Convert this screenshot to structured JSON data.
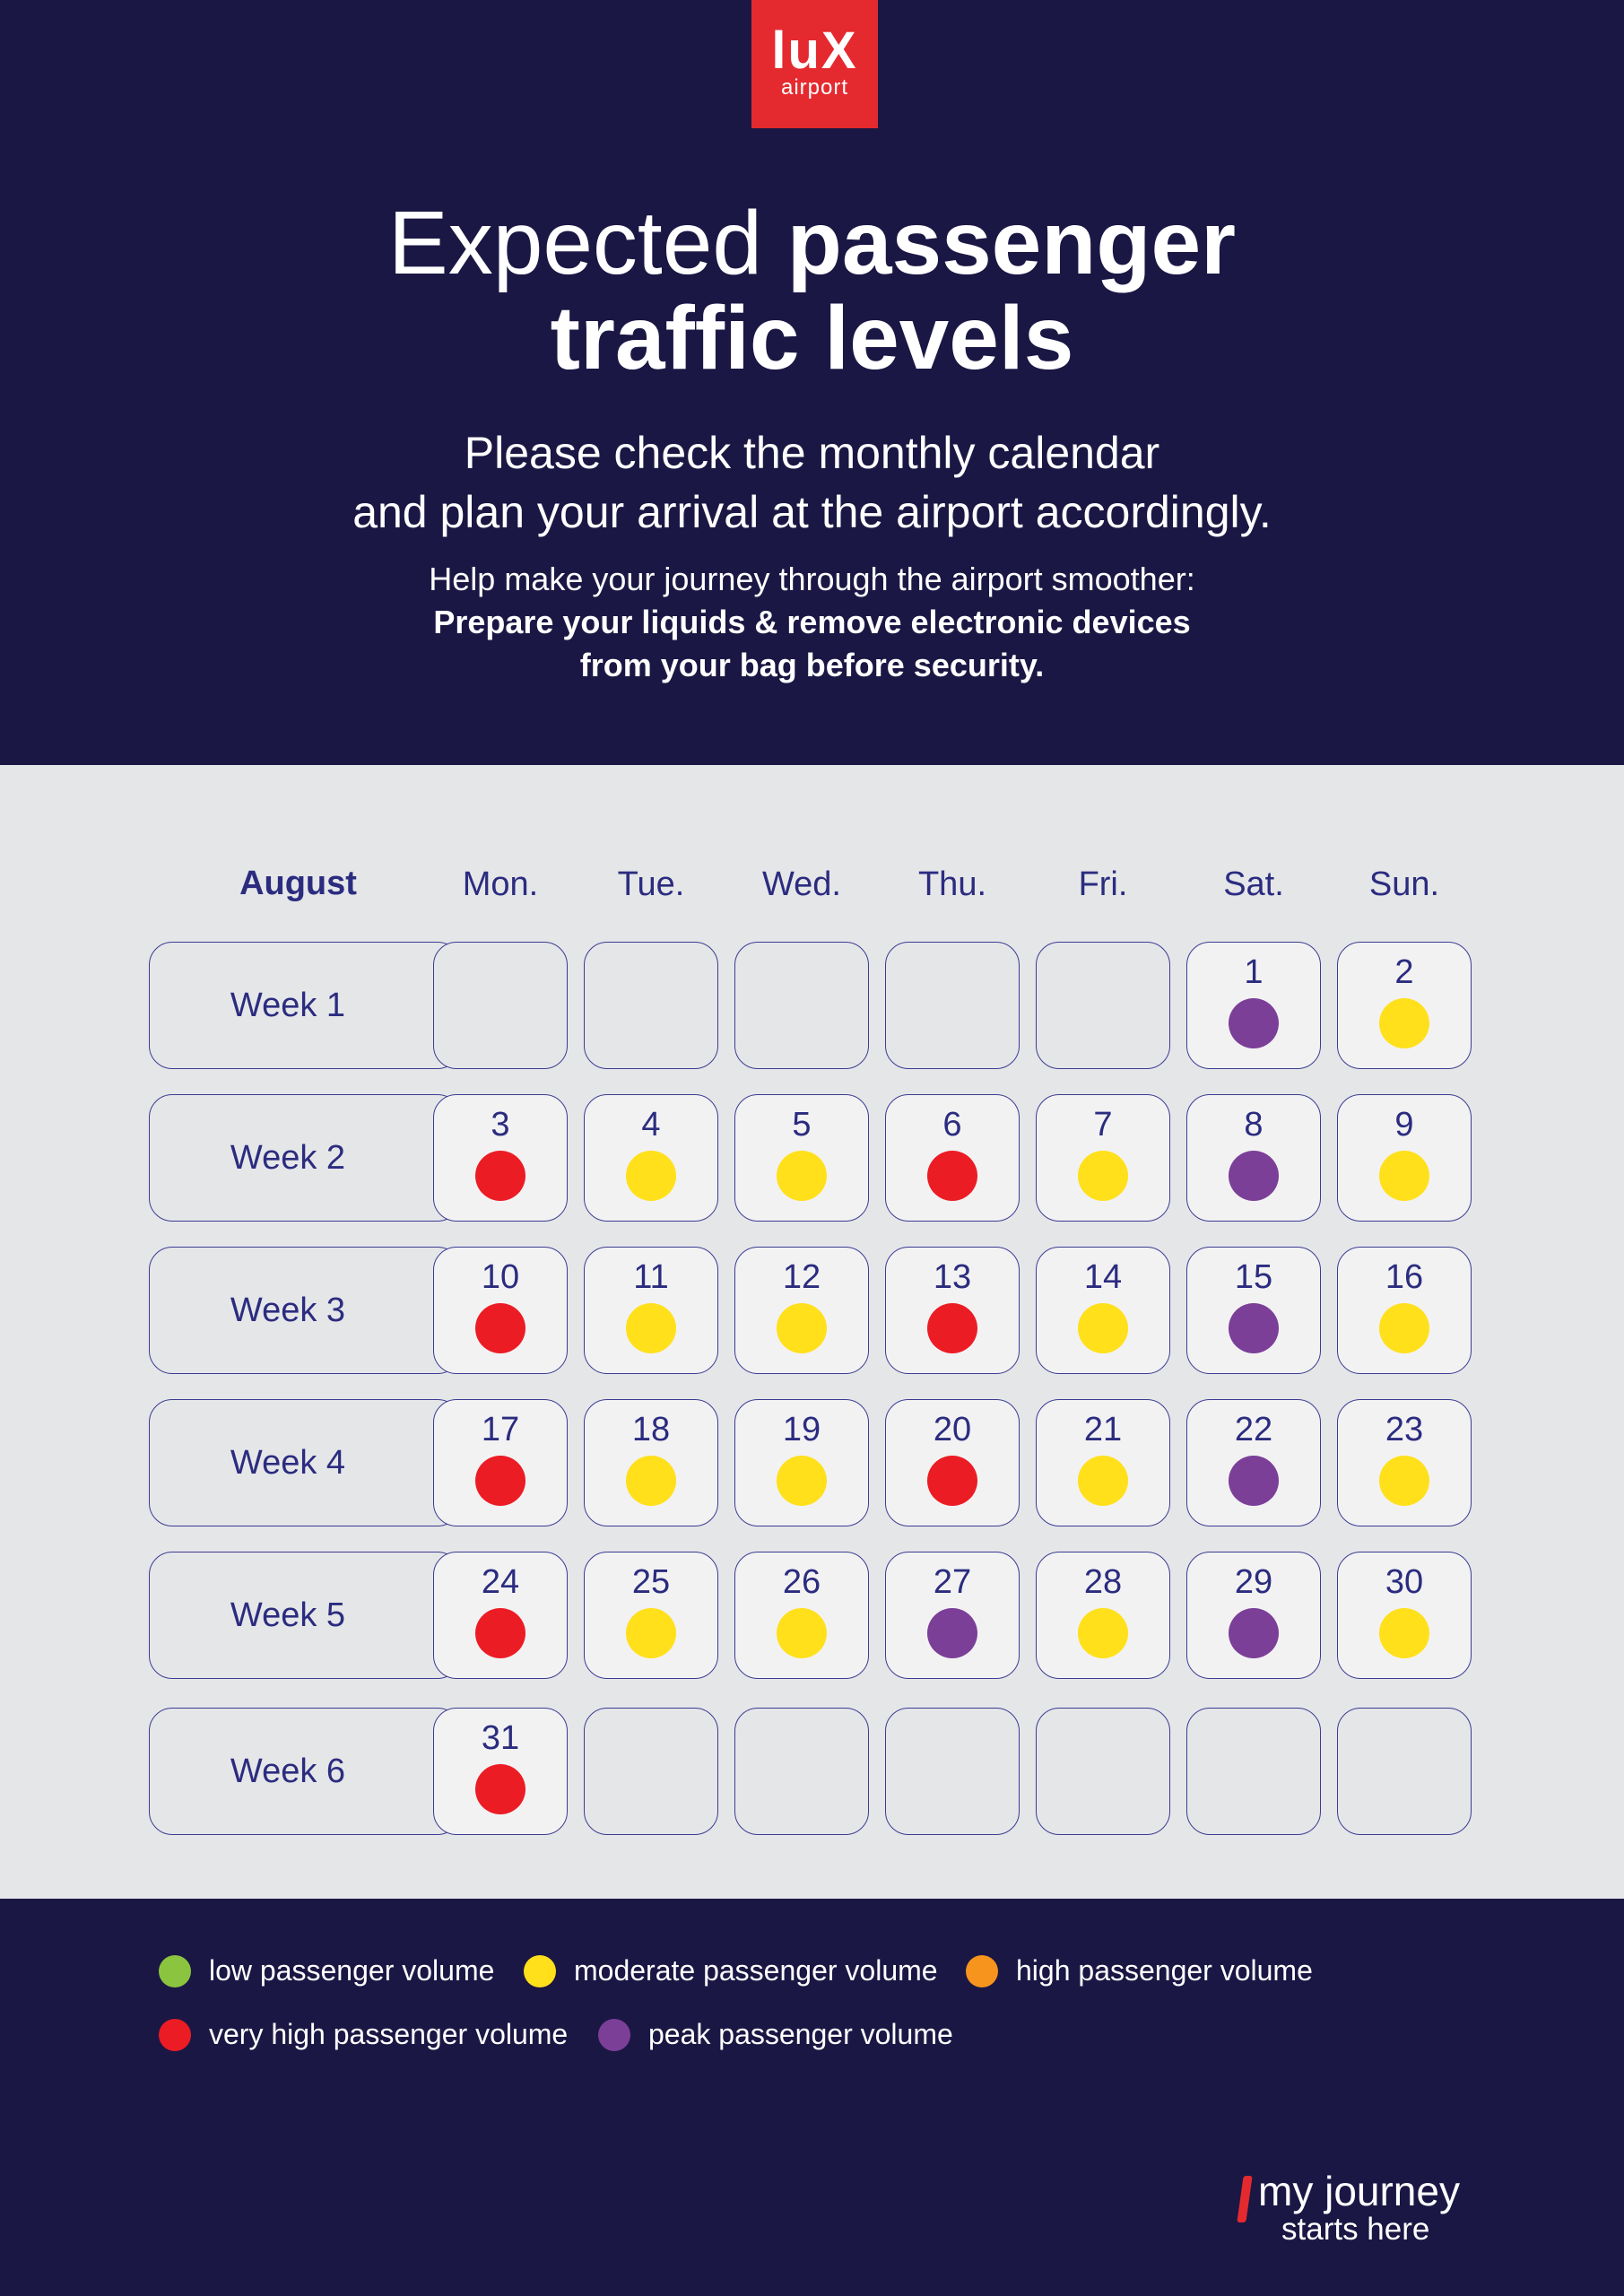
{
  "logo": {
    "brand": "luX",
    "sub": "airport"
  },
  "header": {
    "title_light": "Expected",
    "title_bold_1": "passenger",
    "title_bold_2": "traffic levels",
    "subtitle_line1": "Please check the monthly calendar",
    "subtitle_line2": "and plan your arrival at the airport accordingly.",
    "tip_line1": "Help make your journey through the airport smoother:",
    "tip_line2": "Prepare your liquids & remove electronic devices",
    "tip_line3": "from your bag before security."
  },
  "calendar": {
    "month": "August",
    "days": [
      "Mon.",
      "Tue.",
      "Wed.",
      "Thu.",
      "Fri.",
      "Sat.",
      "Sun."
    ],
    "weeks": [
      {
        "label": "Week 1",
        "cells": [
          null,
          null,
          null,
          null,
          null,
          {
            "day": "1",
            "level": "peak"
          },
          {
            "day": "2",
            "level": "moderate"
          }
        ]
      },
      {
        "label": "Week 2",
        "cells": [
          {
            "day": "3",
            "level": "very_high"
          },
          {
            "day": "4",
            "level": "moderate"
          },
          {
            "day": "5",
            "level": "moderate"
          },
          {
            "day": "6",
            "level": "very_high"
          },
          {
            "day": "7",
            "level": "moderate"
          },
          {
            "day": "8",
            "level": "peak"
          },
          {
            "day": "9",
            "level": "moderate"
          }
        ]
      },
      {
        "label": "Week 3",
        "cells": [
          {
            "day": "10",
            "level": "very_high"
          },
          {
            "day": "11",
            "level": "moderate"
          },
          {
            "day": "12",
            "level": "moderate"
          },
          {
            "day": "13",
            "level": "very_high"
          },
          {
            "day": "14",
            "level": "moderate"
          },
          {
            "day": "15",
            "level": "peak"
          },
          {
            "day": "16",
            "level": "moderate"
          }
        ]
      },
      {
        "label": "Week 4",
        "cells": [
          {
            "day": "17",
            "level": "very_high"
          },
          {
            "day": "18",
            "level": "moderate"
          },
          {
            "day": "19",
            "level": "moderate"
          },
          {
            "day": "20",
            "level": "very_high"
          },
          {
            "day": "21",
            "level": "moderate"
          },
          {
            "day": "22",
            "level": "peak"
          },
          {
            "day": "23",
            "level": "moderate"
          }
        ]
      },
      {
        "label": "Week 5",
        "cells": [
          {
            "day": "24",
            "level": "very_high"
          },
          {
            "day": "25",
            "level": "moderate"
          },
          {
            "day": "26",
            "level": "moderate"
          },
          {
            "day": "27",
            "level": "peak"
          },
          {
            "day": "28",
            "level": "moderate"
          },
          {
            "day": "29",
            "level": "peak"
          },
          {
            "day": "30",
            "level": "moderate"
          }
        ]
      },
      {
        "label": "Week 6",
        "cells": [
          {
            "day": "31",
            "level": "very_high"
          },
          null,
          null,
          null,
          null,
          null,
          null
        ]
      }
    ]
  },
  "levels": {
    "low": {
      "label": "low passenger volume",
      "color": "#8bc53f"
    },
    "moderate": {
      "label": "moderate passenger volume",
      "color": "#ffe01b"
    },
    "high": {
      "label": "high passenger volume",
      "color": "#f7941d"
    },
    "very_high": {
      "label": "very high passenger volume",
      "color": "#ec1c24"
    },
    "peak": {
      "label": "peak passenger volume",
      "color": "#7b3f98"
    }
  },
  "brand": {
    "line1": "my journey",
    "line2": "starts here"
  },
  "colors": {
    "navy": "#1b1744",
    "accent_red": "#e42a2f",
    "calendar_bg": "#e5e6e8",
    "ink": "#2b2c7f"
  }
}
